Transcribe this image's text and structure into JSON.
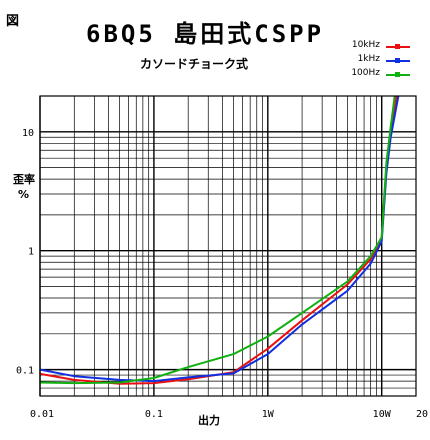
{
  "page": {
    "corner_label": "図",
    "title": "6BQ5 島田式CSPP",
    "subtitle": "カソードチョーク式",
    "ylabel_line1": "歪率",
    "ylabel_line2": "%",
    "xlabel": "出力"
  },
  "chart_data": {
    "type": "line",
    "title": "6BQ5 島田式CSPP",
    "subtitle": "カソードチョーク式",
    "xlabel": "出力",
    "ylabel": "歪率 %",
    "x_scale": "log",
    "y_scale": "log",
    "xlim": [
      0.01,
      20
    ],
    "ylim": [
      0.06,
      20
    ],
    "grid": true,
    "legend_position": "top-right",
    "x_ticks": [
      {
        "value": 0.01,
        "label": "0.01"
      },
      {
        "value": 0.1,
        "label": "0.1"
      },
      {
        "value": 1,
        "label": "1W"
      },
      {
        "value": 10,
        "label": "10W"
      },
      {
        "value": 20,
        "label": "20"
      }
    ],
    "y_ticks": [
      {
        "value": 0.1,
        "label": "0.1"
      },
      {
        "value": 1,
        "label": "1"
      },
      {
        "value": 10,
        "label": "10"
      }
    ],
    "series": [
      {
        "name": "10kHz",
        "color": "#e81010",
        "x": [
          0.01,
          0.02,
          0.05,
          0.1,
          0.2,
          0.5,
          1,
          2,
          5,
          8,
          10,
          11,
          12,
          13.5
        ],
        "y": [
          0.092,
          0.082,
          0.076,
          0.077,
          0.083,
          0.095,
          0.15,
          0.26,
          0.52,
          0.85,
          1.3,
          5.0,
          10,
          20
        ]
      },
      {
        "name": "1kHz",
        "color": "#1030e0",
        "x": [
          0.01,
          0.02,
          0.05,
          0.1,
          0.2,
          0.5,
          1,
          2,
          5,
          8,
          10,
          11,
          12,
          14
        ],
        "y": [
          0.1,
          0.088,
          0.082,
          0.08,
          0.086,
          0.093,
          0.135,
          0.24,
          0.46,
          0.78,
          1.2,
          4.5,
          9,
          20
        ]
      },
      {
        "name": "100Hz",
        "color": "#10b010",
        "x": [
          0.01,
          0.02,
          0.05,
          0.1,
          0.2,
          0.5,
          1,
          2,
          5,
          8,
          10,
          11,
          12,
          13
        ],
        "y": [
          0.078,
          0.077,
          0.078,
          0.085,
          0.105,
          0.135,
          0.19,
          0.3,
          0.55,
          0.9,
          1.3,
          5.5,
          11,
          20
        ]
      }
    ]
  }
}
